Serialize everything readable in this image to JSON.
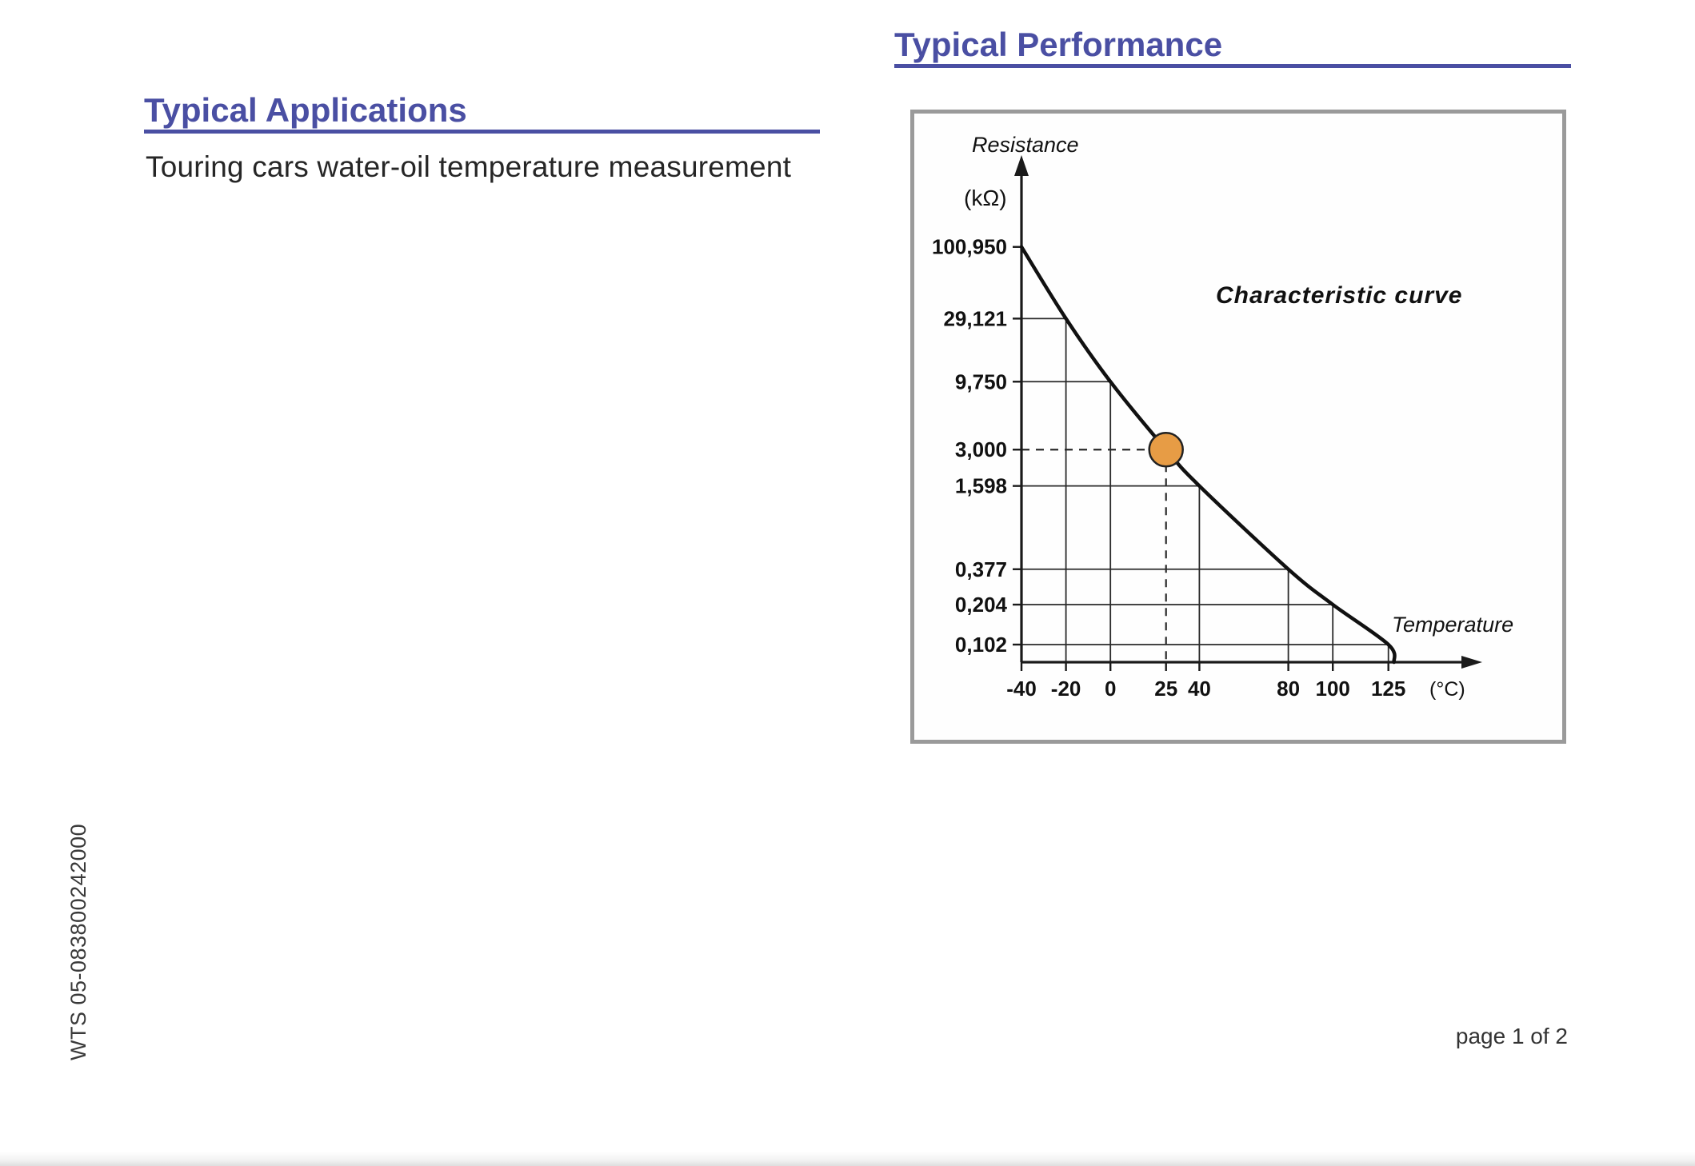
{
  "page": {
    "accent_color": "#4a4fa3",
    "sections": {
      "applications": {
        "heading": "Typical Applications",
        "body": "Touring cars water-oil temperature measurement"
      },
      "performance": {
        "heading": "Typical Performance"
      }
    },
    "footer": {
      "doc_code": "WTS 05-083800242000",
      "page_label": "page 1 of 2"
    }
  },
  "chart_data": {
    "type": "line",
    "title": "Characteristic curve",
    "y_axis": {
      "title": "Resistance",
      "unit": "(kΩ)",
      "scale": "log",
      "range_kohm": [
        0.102,
        100.95
      ]
    },
    "x_axis": {
      "title": "Temperature",
      "unit": "(°C)",
      "scale": "linear",
      "range": [
        -40,
        125
      ]
    },
    "grid": "step gridlines from each labeled point to both axes",
    "legend": "none",
    "series": [
      {
        "name": "Characteristic curve",
        "points": [
          {
            "x": -40,
            "y": 100.95,
            "x_label": "-40",
            "y_label": "100,950"
          },
          {
            "x": -20,
            "y": 29.121,
            "x_label": "-20",
            "y_label": "29,121"
          },
          {
            "x": 0,
            "y": 9.75,
            "x_label": "0",
            "y_label": "9,750"
          },
          {
            "x": 25,
            "y": 3.0,
            "x_label": "25",
            "y_label": "3,000"
          },
          {
            "x": 40,
            "y": 1.598,
            "x_label": "40",
            "y_label": "1,598"
          },
          {
            "x": 80,
            "y": 0.377,
            "x_label": "80",
            "y_label": "0,377"
          },
          {
            "x": 100,
            "y": 0.204,
            "x_label": "100",
            "y_label": "0,204"
          },
          {
            "x": 125,
            "y": 0.102,
            "x_label": "125",
            "y_label": "0,102"
          }
        ]
      }
    ],
    "highlight_point": {
      "x": 25,
      "y": 3.0,
      "color": "#e79c45",
      "style": "dashed guides to both axes"
    }
  }
}
